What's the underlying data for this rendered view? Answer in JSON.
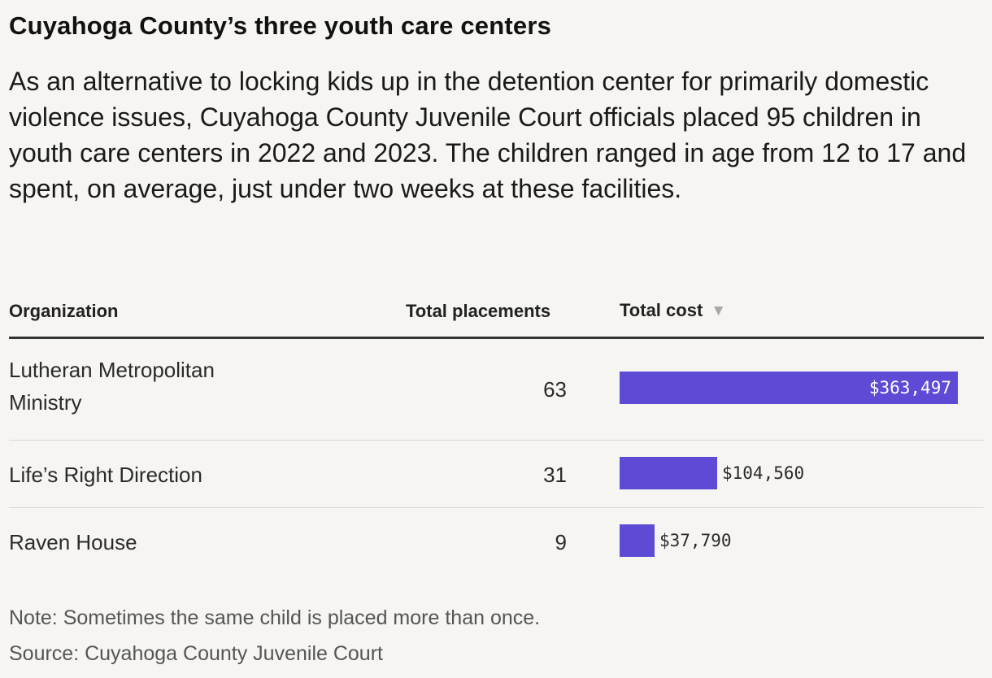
{
  "title": "Cuyahoga County’s three youth care centers",
  "subtitle": "As an alternative to locking kids up in the detention center for primarily domestic violence issues, Cuyahoga County Juvenile Court officials placed 95 children in youth care centers in 2022 and 2023. The children ranged in age from 12 to 17 and spent, on average, just under two weeks at these facilities.",
  "table": {
    "columns": [
      "Organization",
      "Total placements",
      "Total cost"
    ],
    "sort_icon": "sort-down-icon",
    "sort_glyph": "▼"
  },
  "chart_data": {
    "type": "table",
    "title": "Cuyahoga County’s three youth care centers",
    "columns": [
      "Organization",
      "Total placements",
      "Total cost"
    ],
    "rows": [
      {
        "organization": "Lutheran Metropolitan Ministry",
        "placements": "63",
        "cost": 363497,
        "cost_label": "$363,497"
      },
      {
        "organization": "Life’s Right Direction",
        "placements": "31",
        "cost": 104560,
        "cost_label": "$104,560"
      },
      {
        "organization": "Raven House",
        "placements": "9",
        "cost": 37790,
        "cost_label": "$37,790"
      }
    ],
    "bar_color": "#5d4bd6",
    "sorted_by": "Total cost",
    "sort_direction": "descending"
  },
  "note": "Note: Sometimes the same child is placed more than once.",
  "source": "Source: Cuyahoga County Juvenile Court"
}
